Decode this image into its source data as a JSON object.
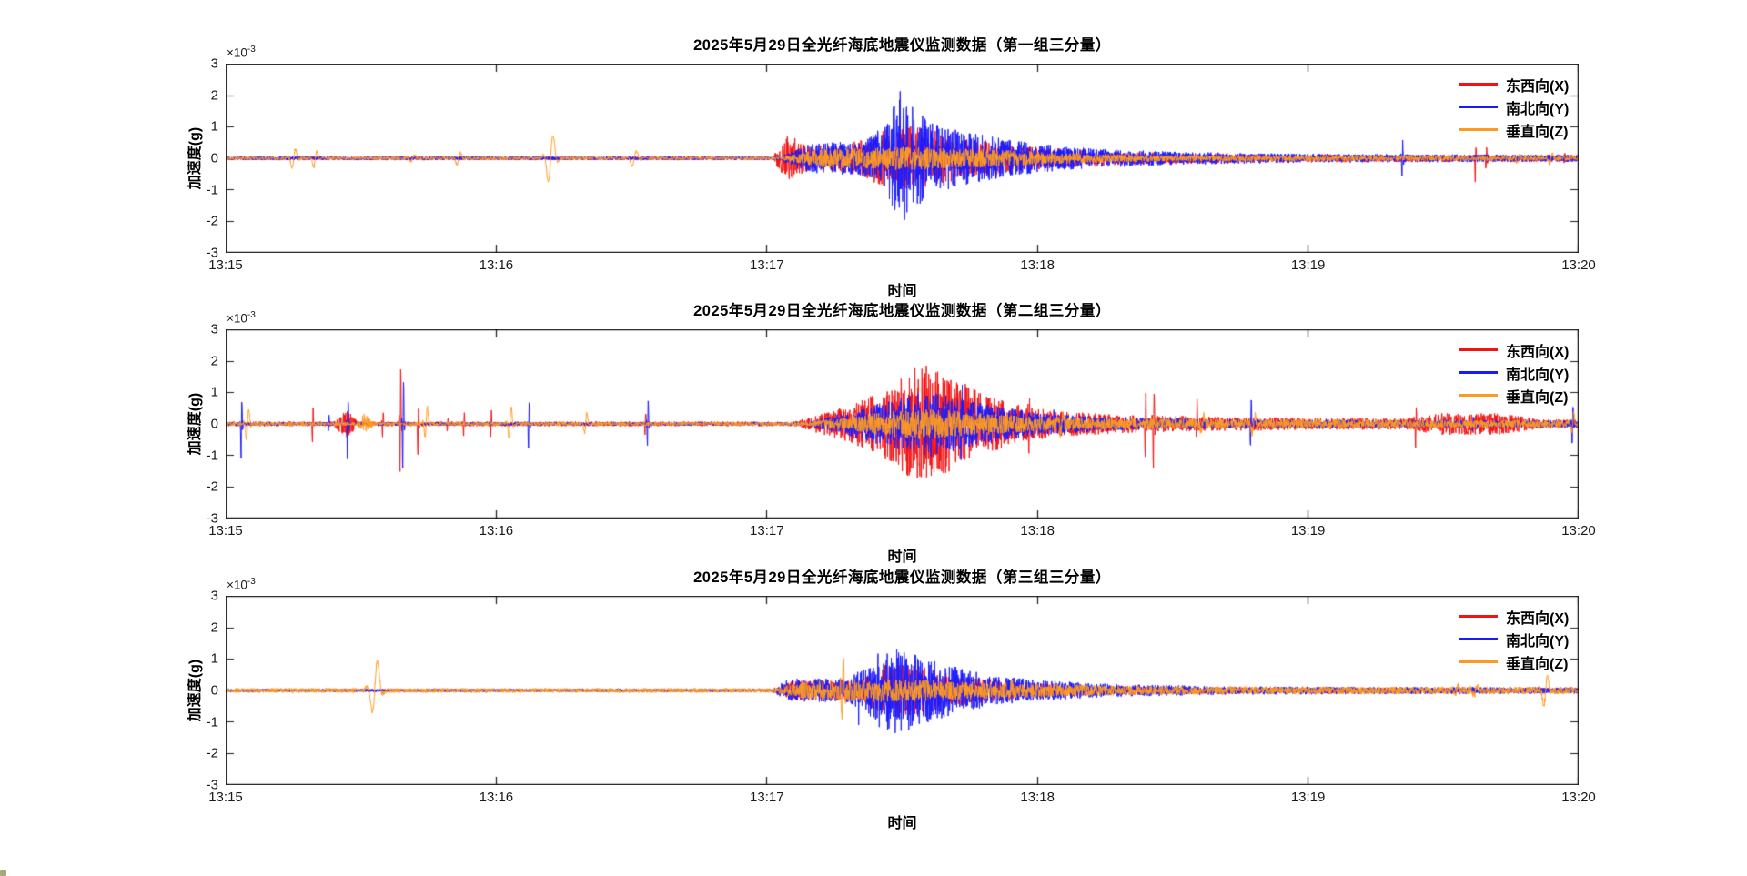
{
  "figure": {
    "background": "#ffffff",
    "axis_color": "#1a1a1a",
    "series_colors": {
      "x_east_west": "#f41111",
      "y_north_south": "#1a1aff",
      "z_vertical": "#ff9a20"
    },
    "corner_artifact_color": "#a9a87c"
  },
  "chart_data": [
    {
      "type": "line",
      "title": "2025年5月29日全光纤海底地震仪监测数据（第一组三分量）",
      "xlabel": "时间",
      "ylabel": "加速度(g)",
      "scale_label": "×10",
      "scale_exponent": "-3",
      "x_ticks": [
        "13:15",
        "13:16",
        "13:17",
        "13:18",
        "13:19",
        "13:20"
      ],
      "y_ticks": [
        "3",
        "2",
        "1",
        "0",
        "-1",
        "-2",
        "-3"
      ],
      "ylim": [
        -3,
        3
      ],
      "xlim_minutes": [
        0,
        5
      ],
      "grid": false,
      "legend_position": "upper-right",
      "legend": [
        {
          "label": "东西向(X)",
          "color": "#f41111"
        },
        {
          "label": "南北向(Y)",
          "color": "#1a1aff"
        },
        {
          "label": "垂直向(Z)",
          "color": "#ff9a20"
        }
      ],
      "seed": 7,
      "series": [
        {
          "name": "东西向(X)",
          "color": "#f41111",
          "base_noise": 0.055,
          "envelope": [
            [
              2.02,
              0
            ],
            [
              2.08,
              0.7
            ],
            [
              2.15,
              0.35
            ],
            [
              2.3,
              0.4
            ],
            [
              2.45,
              0.9
            ],
            [
              2.55,
              1.0
            ],
            [
              2.65,
              0.75
            ],
            [
              2.8,
              0.5
            ],
            [
              3.0,
              0.3
            ],
            [
              3.3,
              0.15
            ],
            [
              3.8,
              0.08
            ],
            [
              5,
              0.05
            ]
          ],
          "spikes": [
            [
              4.62,
              0.45,
              0.85,
              0.002
            ],
            [
              4.66,
              0.35,
              0.5,
              0.002
            ],
            [
              4.95,
              0.2,
              0.2,
              0.002
            ]
          ]
        },
        {
          "name": "南北向(Y)",
          "color": "#1a1aff",
          "base_noise": 0.06,
          "envelope": [
            [
              2.05,
              0
            ],
            [
              2.15,
              0.4
            ],
            [
              2.35,
              0.5
            ],
            [
              2.44,
              1.0
            ],
            [
              2.49,
              2.15
            ],
            [
              2.54,
              1.6
            ],
            [
              2.6,
              1.1
            ],
            [
              2.7,
              0.85
            ],
            [
              2.85,
              0.6
            ],
            [
              3.0,
              0.4
            ],
            [
              3.2,
              0.25
            ],
            [
              3.5,
              0.15
            ],
            [
              4.0,
              0.08
            ],
            [
              5,
              0.05
            ]
          ],
          "spikes": [
            [
              4.35,
              0.75,
              0.8,
              0.002
            ]
          ]
        },
        {
          "name": "垂直向(Z)",
          "color": "#ff9a20",
          "base_noise": 0.045,
          "envelope": [
            [
              2.05,
              0
            ],
            [
              2.2,
              0.25
            ],
            [
              2.5,
              0.33
            ],
            [
              2.8,
              0.25
            ],
            [
              3.1,
              0.12
            ],
            [
              3.5,
              0.05
            ],
            [
              5,
              0.03
            ]
          ],
          "spikes": [
            [
              0.25,
              0.35,
              0.4,
              0.009
            ],
            [
              0.33,
              0.3,
              0.35,
              0.008
            ],
            [
              0.69,
              0.12,
              0.12,
              0.01
            ],
            [
              0.86,
              0.22,
              0.25,
              0.009
            ],
            [
              1.2,
              0.93,
              0.95,
              0.012
            ],
            [
              1.51,
              0.3,
              0.32,
              0.011
            ],
            [
              4.78,
              0.15,
              0.15,
              0.008
            ],
            [
              4.9,
              0.18,
              0.2,
              0.008
            ]
          ]
        }
      ]
    },
    {
      "type": "line",
      "title": "2025年5月29日全光纤海底地震仪监测数据（第二组三分量）",
      "xlabel": "时间",
      "ylabel": "加速度(g)",
      "scale_label": "×10",
      "scale_exponent": "-3",
      "x_ticks": [
        "13:15",
        "13:16",
        "13:17",
        "13:18",
        "13:19",
        "13:20"
      ],
      "y_ticks": [
        "3",
        "2",
        "1",
        "0",
        "-1",
        "-2",
        "-3"
      ],
      "ylim": [
        -3,
        3
      ],
      "xlim_minutes": [
        0,
        5
      ],
      "grid": false,
      "legend_position": "upper-right",
      "legend": [
        {
          "label": "东西向(X)",
          "color": "#f41111"
        },
        {
          "label": "南北向(Y)",
          "color": "#1a1aff"
        },
        {
          "label": "垂直向(Z)",
          "color": "#ff9a20"
        }
      ],
      "seed": 21,
      "series": [
        {
          "name": "东西向(X)",
          "color": "#f41111",
          "base_noise": 0.075,
          "envelope": [
            [
              0.4,
              0
            ],
            [
              0.44,
              0.42
            ],
            [
              0.49,
              0
            ],
            [
              2.1,
              0
            ],
            [
              2.3,
              0.5
            ],
            [
              2.45,
              1.1
            ],
            [
              2.56,
              1.9
            ],
            [
              2.66,
              1.5
            ],
            [
              2.78,
              1.0
            ],
            [
              2.9,
              0.6
            ],
            [
              3.05,
              0.35
            ],
            [
              3.3,
              0.22
            ],
            [
              3.6,
              0.15
            ],
            [
              4.35,
              0.1
            ],
            [
              4.5,
              0.28
            ],
            [
              4.72,
              0.26
            ],
            [
              4.85,
              0.08
            ],
            [
              5,
              0.06
            ]
          ],
          "spikes": [
            [
              0.32,
              0.6,
              0.85,
              0.002
            ],
            [
              0.58,
              0.5,
              0.55,
              0.002
            ],
            [
              0.645,
              2.4,
              2.1,
              0.0022
            ],
            [
              0.71,
              0.65,
              1.35,
              0.002
            ],
            [
              0.82,
              0.3,
              0.3,
              0.002
            ],
            [
              0.88,
              0.45,
              0.5,
              0.002
            ],
            [
              0.98,
              0.55,
              0.6,
              0.002
            ],
            [
              1.55,
              0.5,
              0.45,
              0.002
            ],
            [
              2.97,
              0.95,
              0.75,
              0.002
            ],
            [
              3.4,
              1.1,
              1.15,
              0.0022
            ],
            [
              3.43,
              1.55,
              1.75,
              0.0022
            ],
            [
              3.54,
              0.35,
              0.3,
              0.002
            ],
            [
              3.59,
              0.75,
              0.7,
              0.002
            ],
            [
              4.4,
              0.85,
              0.8,
              0.0022
            ]
          ]
        },
        {
          "name": "南北向(Y)",
          "color": "#1a1aff",
          "base_noise": 0.055,
          "envelope": [
            [
              2.15,
              0
            ],
            [
              2.35,
              0.45
            ],
            [
              2.5,
              0.8
            ],
            [
              2.6,
              1.0
            ],
            [
              2.72,
              0.75
            ],
            [
              2.85,
              0.5
            ],
            [
              3.0,
              0.3
            ],
            [
              3.3,
              0.15
            ],
            [
              3.8,
              0.08
            ],
            [
              5,
              0.06
            ]
          ],
          "spikes": [
            [
              0.057,
              0.95,
              1.45,
              0.0022
            ],
            [
              0.38,
              0.35,
              0.3,
              0.002
            ],
            [
              0.45,
              0.95,
              1.5,
              0.0022
            ],
            [
              0.655,
              1.9,
              1.9,
              0.0022
            ],
            [
              1.12,
              0.95,
              1.05,
              0.0022
            ],
            [
              1.56,
              1.0,
              0.9,
              0.0022
            ],
            [
              2.72,
              1.0,
              1.5,
              0.0022
            ],
            [
              3.06,
              0.45,
              0.4,
              0.002
            ],
            [
              3.79,
              1.05,
              1.1,
              0.0022
            ],
            [
              4.61,
              0.3,
              0.35,
              0.002
            ],
            [
              4.98,
              0.85,
              0.85,
              0.0022
            ]
          ]
        },
        {
          "name": "垂直向(Z)",
          "color": "#ff9a20",
          "base_noise": 0.06,
          "envelope": [
            [
              0.48,
              0
            ],
            [
              0.51,
              0.26
            ],
            [
              0.55,
              0
            ],
            [
              2.15,
              0
            ],
            [
              2.4,
              0.28
            ],
            [
              2.55,
              0.45
            ],
            [
              2.7,
              0.35
            ],
            [
              2.9,
              0.22
            ],
            [
              3.2,
              0.12
            ],
            [
              5,
              0.05
            ]
          ],
          "spikes": [
            [
              0.08,
              0.6,
              0.6,
              0.006
            ],
            [
              0.74,
              0.7,
              0.5,
              0.006
            ],
            [
              1.05,
              0.75,
              0.6,
              0.006
            ],
            [
              1.33,
              0.5,
              0.4,
              0.006
            ],
            [
              3.09,
              0.35,
              0.3,
              0.006
            ],
            [
              3.61,
              0.3,
              0.3,
              0.007
            ],
            [
              3.8,
              0.35,
              0.35,
              0.007
            ],
            [
              4.98,
              0.4,
              0.3,
              0.006
            ]
          ]
        }
      ]
    },
    {
      "type": "line",
      "title": "2025年5月29日全光纤海底地震仪监测数据（第三组三分量）",
      "xlabel": "时间",
      "ylabel": "加速度(g)",
      "scale_label": "×10",
      "scale_exponent": "-3",
      "x_ticks": [
        "13:15",
        "13:16",
        "13:17",
        "13:18",
        "13:19",
        "13:20"
      ],
      "y_ticks": [
        "3",
        "2",
        "1",
        "0",
        "-1",
        "-2",
        "-3"
      ],
      "ylim": [
        -3,
        3
      ],
      "xlim_minutes": [
        0,
        5
      ],
      "grid": false,
      "legend_position": "upper-right",
      "legend": [
        {
          "label": "东西向(X)",
          "color": "#f41111"
        },
        {
          "label": "南北向(Y)",
          "color": "#1a1aff"
        },
        {
          "label": "垂直向(Z)",
          "color": "#ff9a20"
        }
      ],
      "seed": 33,
      "series": [
        {
          "name": "东西向(X)",
          "color": "#f41111",
          "base_noise": 0.04,
          "envelope": [
            [
              2.02,
              0
            ],
            [
              2.1,
              0.28
            ],
            [
              2.35,
              0.3
            ],
            [
              2.45,
              0.85
            ],
            [
              2.55,
              0.75
            ],
            [
              2.7,
              0.45
            ],
            [
              2.9,
              0.25
            ],
            [
              3.2,
              0.12
            ],
            [
              3.6,
              0.06
            ],
            [
              5,
              0.04
            ]
          ],
          "spikes": []
        },
        {
          "name": "南北向(Y)",
          "color": "#1a1aff",
          "base_noise": 0.05,
          "envelope": [
            [
              2.02,
              0
            ],
            [
              2.08,
              0.32
            ],
            [
              2.3,
              0.32
            ],
            [
              2.38,
              0.8
            ],
            [
              2.46,
              1.35
            ],
            [
              2.56,
              1.05
            ],
            [
              2.68,
              0.75
            ],
            [
              2.82,
              0.45
            ],
            [
              3.0,
              0.28
            ],
            [
              3.3,
              0.15
            ],
            [
              3.7,
              0.08
            ],
            [
              5,
              0.05
            ]
          ],
          "spikes": [
            [
              2.34,
              0.55,
              0.85,
              0.0022
            ],
            [
              2.41,
              1.35,
              1.45,
              0.0022
            ],
            [
              2.47,
              1.1,
              1.2,
              0.0022
            ],
            [
              2.52,
              1.05,
              0.9,
              0.0022
            ]
          ]
        },
        {
          "name": "垂直向(Z)",
          "color": "#ff9a20",
          "base_noise": 0.075,
          "envelope": [
            [
              2.02,
              0
            ],
            [
              2.15,
              0.22
            ],
            [
              2.45,
              0.3
            ],
            [
              2.65,
              0.25
            ],
            [
              2.95,
              0.15
            ],
            [
              3.4,
              0.06
            ],
            [
              5,
              0.04
            ]
          ],
          "spikes": [
            [
              0.55,
              1.2,
              0.85,
              0.013
            ],
            [
              2.28,
              1.35,
              1.25,
              0.004
            ],
            [
              2.9,
              0.15,
              0.15,
              0.008
            ],
            [
              4.55,
              0.2,
              0.2,
              0.008
            ],
            [
              4.62,
              0.2,
              0.22,
              0.008
            ],
            [
              4.88,
              0.55,
              0.6,
              0.009
            ]
          ]
        }
      ]
    }
  ]
}
